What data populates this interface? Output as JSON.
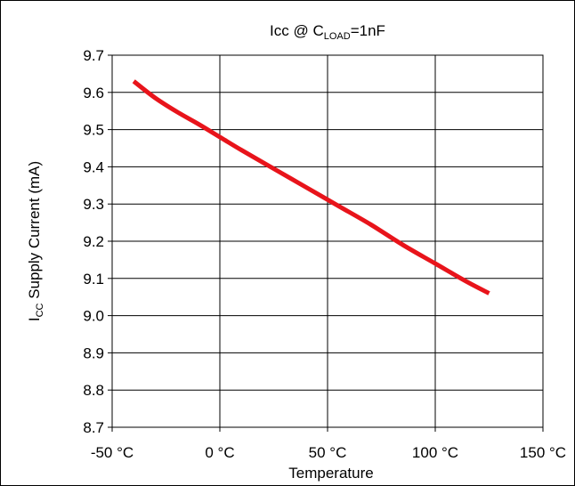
{
  "chart_data": {
    "type": "line",
    "title": {
      "main": "Icc @ C",
      "sub": "LOAD",
      "tail": "=1nF"
    },
    "ylabel": {
      "main": "I",
      "sub": "CC",
      "tail": " Supply Current (mA)"
    },
    "xlabel": "Temperature",
    "x_ticks": [
      {
        "value": -50,
        "label": "-50 °C"
      },
      {
        "value": 0,
        "label": "0 °C"
      },
      {
        "value": 50,
        "label": "50 °C"
      },
      {
        "value": 100,
        "label": "100 °C"
      },
      {
        "value": 150,
        "label": "150 °C"
      }
    ],
    "y_ticks": [
      "8.7",
      "8.8",
      "8.9",
      "9.0",
      "9.1",
      "9.2",
      "9.3",
      "9.4",
      "9.5",
      "9.6",
      "9.7"
    ],
    "xlim": [
      -50,
      150
    ],
    "ylim": [
      8.7,
      9.7
    ],
    "grid": true,
    "series": [
      {
        "color": "#e8141b",
        "x": [
          -40,
          -30,
          -20,
          -10,
          0,
          10,
          25,
          40,
          55,
          70,
          85,
          100,
          115,
          125
        ],
        "y": [
          9.63,
          9.585,
          9.548,
          9.515,
          9.48,
          9.445,
          9.395,
          9.345,
          9.295,
          9.245,
          9.19,
          9.14,
          9.09,
          9.06
        ]
      }
    ]
  }
}
